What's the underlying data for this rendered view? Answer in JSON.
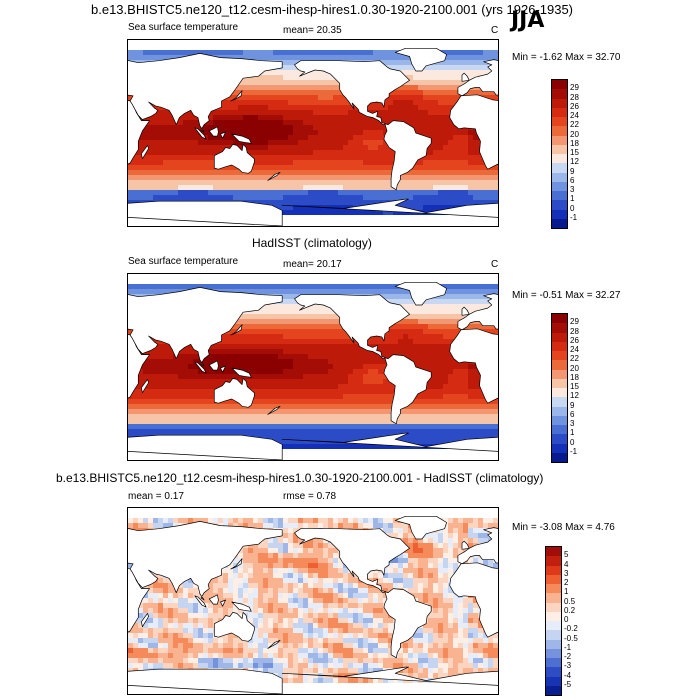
{
  "figure": {
    "season": "JJA",
    "title_top": "b.e13.BHISTC5.ne120_t12.cesm-ihesp-hires1.0.30-1920-2100.001 (yrs 1926-1935)",
    "title_mid": "HadISST (climatology)",
    "title_bottom": "b.e13.BHISTC5.ne120_t12.cesm-ihesp-hires1.0.30-1920-2100.001 - HadISST (climatology)"
  },
  "panels": [
    {
      "id": "model",
      "label": "Sea surface temperature",
      "stat_text": "mean=  20.35",
      "units": "C",
      "minmax_text": "Min =  -1.62 Max =  32.70",
      "field": "sst"
    },
    {
      "id": "obs",
      "label": "Sea surface temperature",
      "stat_text": "mean=  20.17",
      "units": "C",
      "minmax_text": "Min =  -0.51 Max =  32.27",
      "field": "sst"
    },
    {
      "id": "diff",
      "label": "mean =   0.17",
      "stat_text": "rmse =   0.78",
      "units": "",
      "minmax_text": "Min =  -3.08 Max =   4.76",
      "field": "diff"
    }
  ],
  "colorbars": {
    "sst": {
      "labels": [
        "29",
        "28",
        "26",
        "24",
        "22",
        "20",
        "18",
        "15",
        "12",
        "9",
        "6",
        "3",
        "1",
        "0",
        "-1"
      ],
      "colors": [
        "#8b0000",
        "#a30d05",
        "#bd1a0a",
        "#d52b12",
        "#e4441e",
        "#ec6a3a",
        "#f39672",
        "#f6c5a8",
        "#fbe9df",
        "#c9d8f2",
        "#9bb7ea",
        "#6f93de",
        "#4a6fd2",
        "#2c4bc7",
        "#1530b8",
        "#071a8e"
      ]
    },
    "diff": {
      "labels": [
        "5",
        "4",
        "3",
        "2",
        "1",
        "0.5",
        "0.2",
        "0",
        "-0.2",
        "-0.5",
        "-1",
        "-2",
        "-3",
        "-4",
        "-5"
      ],
      "colors": [
        "#a10d0b",
        "#c2200f",
        "#dd3a1a",
        "#ee5f31",
        "#f58a5b",
        "#f9b391",
        "#fbd5c0",
        "#fdeee6",
        "#e6edf9",
        "#c5d4f1",
        "#9fb6e8",
        "#7593dc",
        "#4d6fd1",
        "#2e4dc5",
        "#1734b4",
        "#0a1f8f"
      ]
    }
  }
}
